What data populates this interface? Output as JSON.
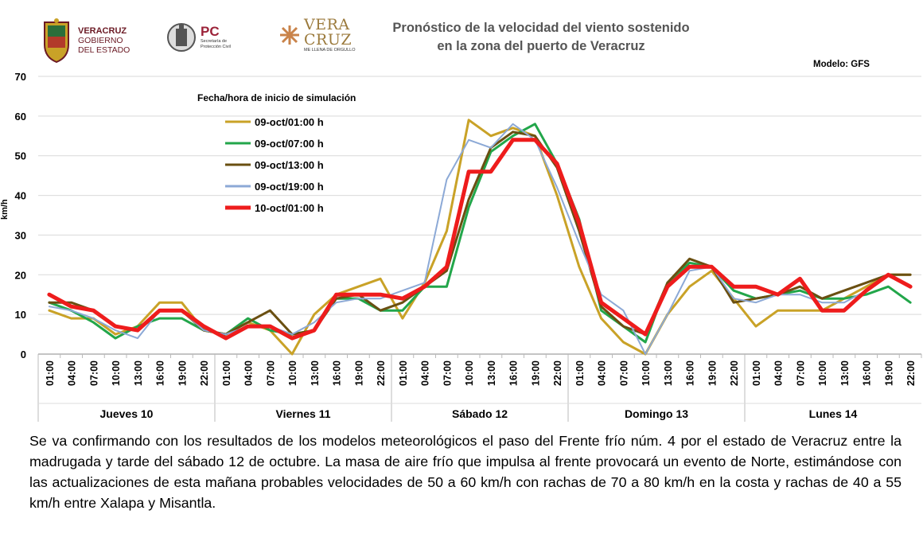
{
  "header": {
    "title_line1": "Pronóstico de la velocidad del viento sostenido",
    "title_line2": "en la zona del puerto de Veracruz",
    "model_label": "Modelo: GFS",
    "logo_veracruz": [
      "VERACRUZ",
      "GOBIERNO",
      "DEL ESTADO"
    ],
    "logo_pc": [
      "PC",
      "Secretaría de",
      "Protección Civil"
    ],
    "logo_brand": [
      "VERA",
      "CRUZ",
      "ME LLENA DE ORGULLO"
    ]
  },
  "chart_data": {
    "type": "line",
    "ylabel": "km/h",
    "ylim": [
      0,
      70
    ],
    "yticks": [
      0,
      10,
      20,
      30,
      40,
      50,
      60,
      70
    ],
    "legend_title": "Fecha/hora de inicio de simulación",
    "legend_position": "top-left",
    "x_tick_labels": [
      "01:00",
      "04:00",
      "07:00",
      "10:00",
      "13:00",
      "16:00",
      "19:00",
      "22:00"
    ],
    "days": [
      "Jueves 10",
      "Viernes 11",
      "Sábado 12",
      "Domingo 13",
      "Lunes 14"
    ],
    "grid": true,
    "series": [
      {
        "name": "09-oct/01:00 h",
        "color": "#c9a227",
        "width": 3,
        "values": [
          11,
          9,
          9,
          5,
          7,
          13,
          13,
          6,
          5,
          8,
          6,
          0,
          10,
          15,
          17,
          19,
          9,
          18,
          31,
          59,
          55,
          57,
          55,
          40,
          22,
          9,
          3,
          0,
          10,
          17,
          21,
          14,
          7,
          11,
          11,
          11,
          14,
          17,
          20,
          20
        ]
      },
      {
        "name": "09-oct/07:00 h",
        "color": "#22a64a",
        "width": 3,
        "values": [
          13,
          11,
          8,
          4,
          7,
          9,
          9,
          6,
          5,
          9,
          6,
          5,
          6,
          14,
          14,
          11,
          11,
          17,
          17,
          37,
          51,
          55,
          58,
          48,
          34,
          11,
          7,
          3,
          18,
          23,
          22,
          16,
          14,
          15,
          16,
          14,
          14,
          15,
          17,
          13
        ]
      },
      {
        "name": "09-oct/13:00 h",
        "color": "#6a4f11",
        "width": 3,
        "values": [
          13,
          13,
          11,
          7,
          6,
          11,
          11,
          6,
          5,
          8,
          11,
          5,
          6,
          14,
          15,
          11,
          13,
          17,
          21,
          39,
          52,
          56,
          55,
          47,
          31,
          12,
          7,
          5,
          18,
          24,
          22,
          13,
          14,
          15,
          17,
          14,
          16,
          18,
          20,
          20
        ]
      },
      {
        "name": "09-oct/19:00 h",
        "color": "#8ca9d6",
        "width": 2,
        "values": [
          12,
          11,
          9,
          6,
          4,
          11,
          11,
          6,
          5,
          7,
          7,
          5,
          8,
          13,
          14,
          14,
          16,
          18,
          44,
          54,
          52,
          58,
          54,
          42,
          28,
          15,
          11,
          0,
          10,
          21,
          22,
          14,
          13,
          15,
          15,
          13,
          13,
          16,
          20,
          17
        ]
      },
      {
        "name": "10-oct/01:00 h",
        "color": "#ee1c1c",
        "width": 5,
        "values": [
          15,
          12,
          11,
          7,
          6,
          11,
          11,
          7,
          4,
          7,
          7,
          4,
          6,
          15,
          15,
          15,
          14,
          17,
          22,
          46,
          46,
          54,
          54,
          48,
          33,
          13,
          9,
          5,
          17,
          22,
          22,
          17,
          17,
          15,
          19,
          11,
          11,
          16,
          20,
          17
        ]
      }
    ]
  },
  "caption": "Se va confirmando con los resultados de los modelos meteorológicos el paso del Frente frío núm. 4 por el estado de Veracruz entre la madrugada y tarde del sábado 12 de octubre. La masa de aire frío que impulsa al frente provocará un evento de Norte, estimándose con las actualizaciones de esta mañana probables velocidades de 50 a 60 km/h con rachas de 70 a 80 km/h en la costa y rachas de 40 a 55 km/h entre Xalapa y Misantla."
}
